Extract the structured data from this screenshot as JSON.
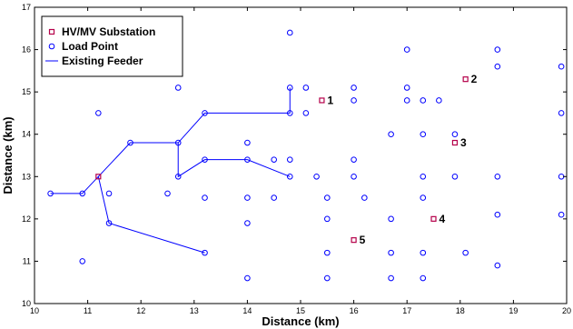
{
  "chart_data": {
    "type": "scatter",
    "title": "",
    "xlabel": "Distance (km)",
    "ylabel": "Distance (km)",
    "xlim": [
      10,
      20
    ],
    "ylim": [
      10,
      17
    ],
    "xticks": [
      10,
      11,
      12,
      13,
      14,
      15,
      16,
      17,
      18,
      19,
      20
    ],
    "yticks": [
      10,
      11,
      12,
      13,
      14,
      15,
      16,
      17
    ],
    "grid": false,
    "legend_position": "top-left",
    "colors": {
      "substation": "#b5004a",
      "load": "#0000ff",
      "feeder": "#0000ff"
    },
    "legend": {
      "substation": "HV/MV Substation",
      "load": "Load Point",
      "feeder": "Existing Feeder"
    },
    "substations": [
      {
        "label": "1",
        "x": 15.4,
        "y": 14.8
      },
      {
        "label": "2",
        "x": 18.1,
        "y": 15.3
      },
      {
        "label": "3",
        "x": 17.9,
        "y": 13.8
      },
      {
        "label": "4",
        "x": 17.5,
        "y": 12.0
      },
      {
        "label": "5",
        "x": 16.0,
        "y": 11.5
      }
    ],
    "feeder_paths": [
      [
        [
          11.2,
          13.0
        ],
        [
          10.9,
          12.6
        ],
        [
          10.3,
          12.6
        ]
      ],
      [
        [
          11.2,
          13.0
        ],
        [
          11.8,
          13.8
        ],
        [
          12.7,
          13.8
        ],
        [
          13.2,
          14.5
        ],
        [
          14.8,
          14.5
        ],
        [
          14.8,
          15.1
        ]
      ],
      [
        [
          12.7,
          13.8
        ],
        [
          12.7,
          13.0
        ],
        [
          13.2,
          13.4
        ],
        [
          14.0,
          13.4
        ],
        [
          14.8,
          13.0
        ]
      ],
      [
        [
          11.2,
          13.0
        ],
        [
          11.4,
          11.9
        ],
        [
          13.2,
          11.2
        ]
      ]
    ],
    "load_points": [
      [
        10.3,
        12.6
      ],
      [
        10.9,
        12.6
      ],
      [
        10.9,
        11.0
      ],
      [
        11.2,
        14.5
      ],
      [
        11.4,
        12.6
      ],
      [
        11.4,
        11.9
      ],
      [
        11.8,
        13.8
      ],
      [
        12.5,
        12.6
      ],
      [
        12.7,
        15.1
      ],
      [
        12.7,
        13.8
      ],
      [
        12.7,
        13.0
      ],
      [
        13.2,
        14.5
      ],
      [
        13.2,
        13.4
      ],
      [
        13.2,
        12.5
      ],
      [
        13.2,
        11.2
      ],
      [
        14.0,
        13.8
      ],
      [
        14.0,
        13.4
      ],
      [
        14.0,
        12.5
      ],
      [
        14.0,
        11.9
      ],
      [
        14.0,
        10.6
      ],
      [
        14.5,
        13.4
      ],
      [
        14.5,
        12.5
      ],
      [
        14.8,
        16.4
      ],
      [
        14.8,
        15.1
      ],
      [
        14.8,
        14.5
      ],
      [
        14.8,
        13.4
      ],
      [
        14.8,
        13.0
      ],
      [
        15.1,
        15.1
      ],
      [
        15.1,
        14.5
      ],
      [
        15.3,
        13.0
      ],
      [
        15.5,
        12.5
      ],
      [
        15.5,
        12.0
      ],
      [
        15.5,
        11.2
      ],
      [
        15.5,
        10.6
      ],
      [
        16.0,
        15.1
      ],
      [
        16.0,
        14.8
      ],
      [
        16.0,
        13.4
      ],
      [
        16.0,
        13.0
      ],
      [
        16.2,
        12.5
      ],
      [
        16.7,
        14.0
      ],
      [
        16.7,
        12.0
      ],
      [
        16.7,
        11.2
      ],
      [
        16.7,
        10.6
      ],
      [
        17.0,
        16.0
      ],
      [
        17.0,
        15.1
      ],
      [
        17.0,
        14.8
      ],
      [
        17.3,
        14.8
      ],
      [
        17.3,
        14.0
      ],
      [
        17.3,
        13.0
      ],
      [
        17.3,
        12.5
      ],
      [
        17.3,
        11.2
      ],
      [
        17.3,
        10.6
      ],
      [
        17.6,
        14.8
      ],
      [
        17.9,
        14.0
      ],
      [
        17.9,
        13.0
      ],
      [
        18.1,
        11.2
      ],
      [
        18.7,
        16.0
      ],
      [
        18.7,
        15.6
      ],
      [
        18.7,
        13.0
      ],
      [
        18.7,
        12.1
      ],
      [
        18.7,
        10.9
      ],
      [
        19.9,
        15.6
      ],
      [
        19.9,
        14.5
      ],
      [
        19.9,
        13.0
      ],
      [
        19.9,
        12.1
      ]
    ],
    "hub_substation": {
      "x": 11.2,
      "y": 13.0
    }
  }
}
